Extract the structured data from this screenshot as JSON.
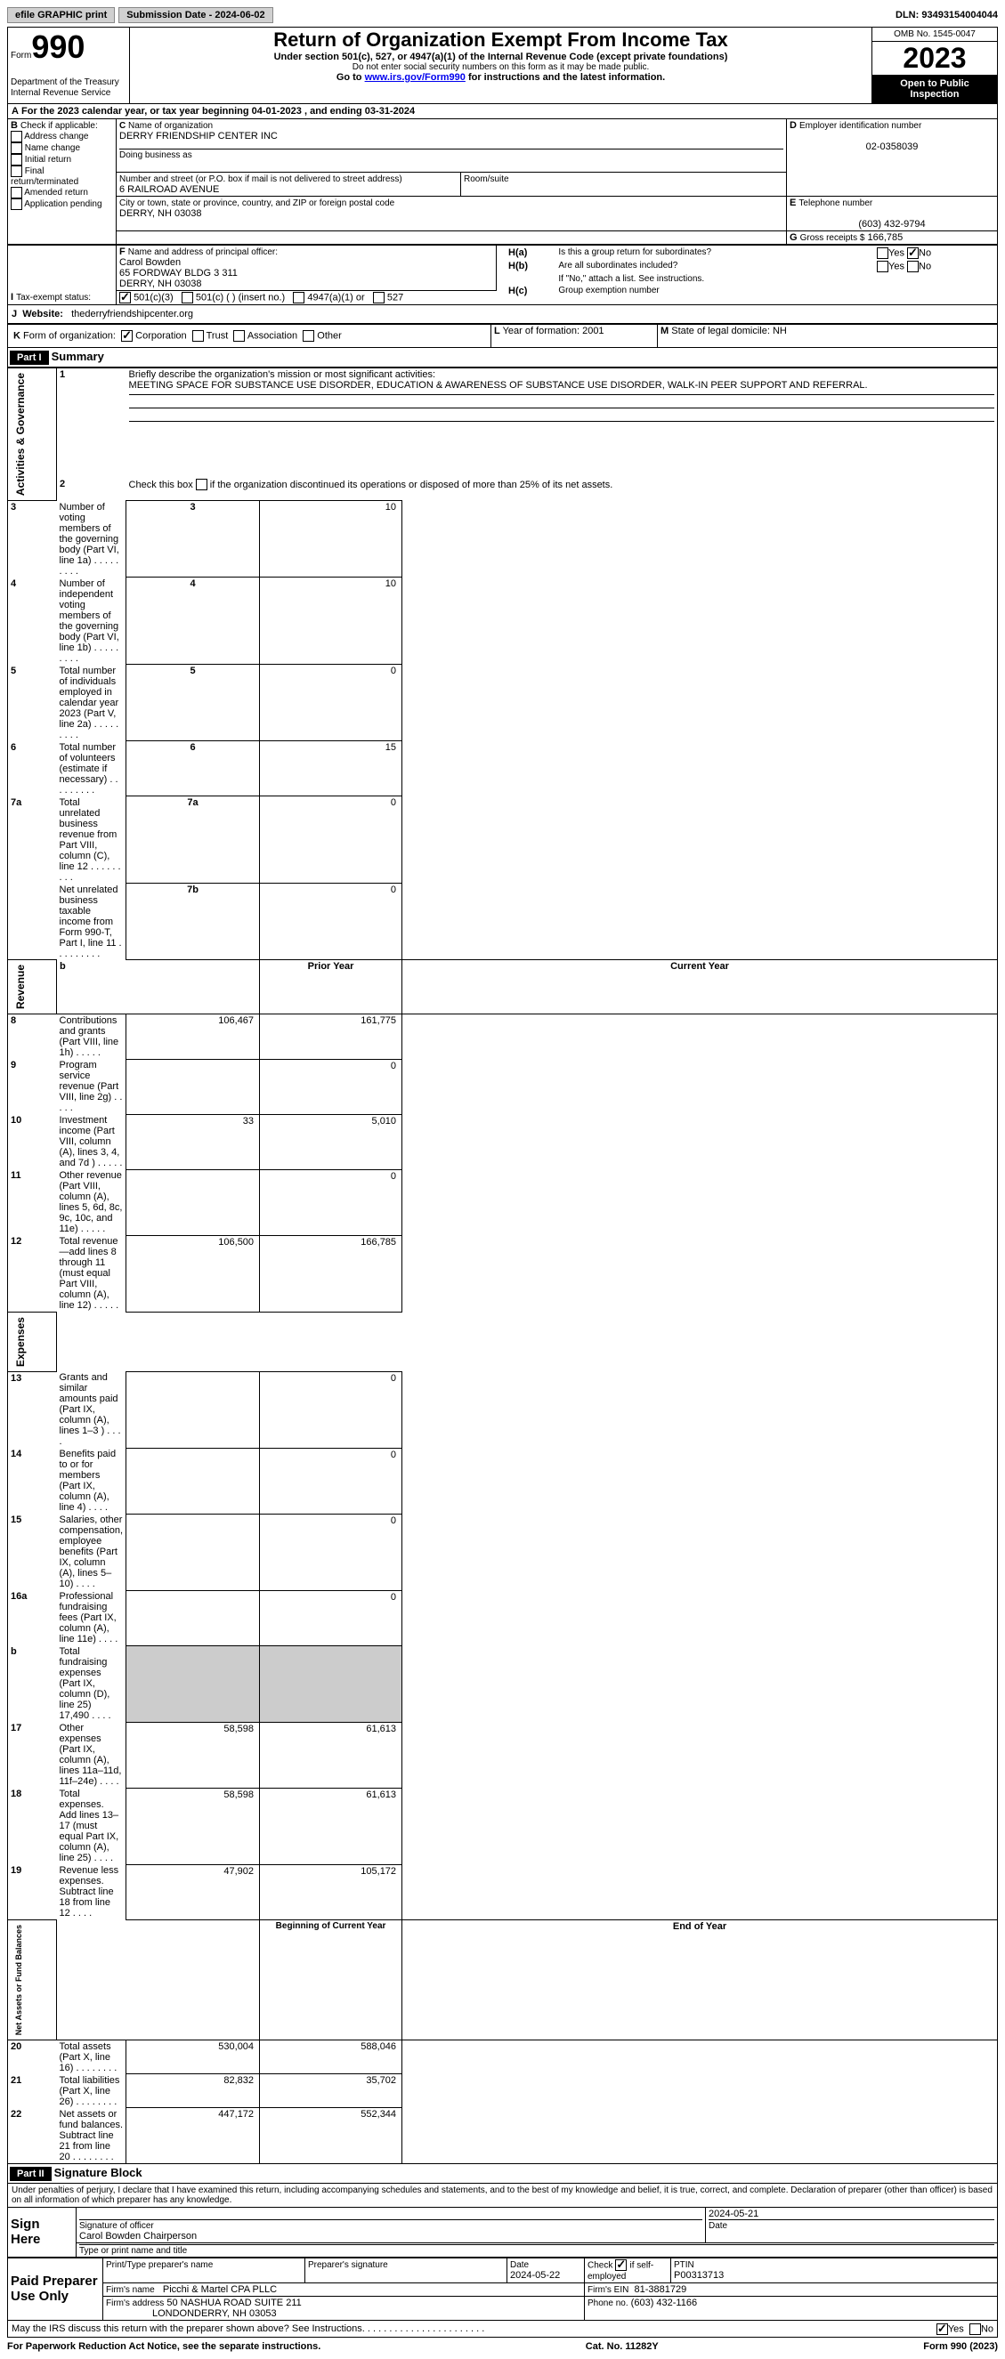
{
  "topbar": {
    "efile": "efile GRAPHIC print",
    "subdate_label": "Submission Date - ",
    "subdate": "2024-06-02",
    "dln_label": "DLN: ",
    "dln": "93493154004044"
  },
  "hdr": {
    "form_label": "Form",
    "form_no": "990",
    "dept": "Department of the Treasury",
    "irs": "Internal Revenue Service",
    "title": "Return of Organization Exempt From Income Tax",
    "subtitle": "Under section 501(c), 527, or 4947(a)(1) of the Internal Revenue Code (except private foundations)",
    "nosocial": "Do not enter social security numbers on this form as it may be made public.",
    "goto_pre": "Go to ",
    "goto_link": "www.irs.gov/Form990",
    "goto_post": " for instructions and the latest information.",
    "omb": "OMB No. 1545-0047",
    "year": "2023",
    "open": "Open to Public Inspection"
  },
  "periodA": {
    "label": "For the 2023 calendar year, or tax year beginning ",
    "begin": "04-01-2023",
    "mid": " , and ending ",
    "end": "03-31-2024"
  },
  "boxB": {
    "hdr": "Check if applicable:",
    "items": [
      "Address change",
      "Name change",
      "Initial return",
      "Final return/terminated",
      "Amended return",
      "Application pending"
    ]
  },
  "boxC": {
    "name_label": "Name of organization",
    "name": "DERRY FRIENDSHIP CENTER INC",
    "dba_label": "Doing business as",
    "addr_label": "Number and street (or P.O. box if mail is not delivered to street address)",
    "room_label": "Room/suite",
    "addr": "6 RAILROAD AVENUE",
    "city_label": "City or town, state or province, country, and ZIP or foreign postal code",
    "city": "DERRY, NH   03038"
  },
  "boxD": {
    "label": "Employer identification number",
    "val": "02-0358039"
  },
  "boxE": {
    "label": "Telephone number",
    "val": "(603) 432-9794"
  },
  "boxG": {
    "label": "Gross receipts $",
    "val": "166,785"
  },
  "boxF": {
    "label": "Name and address of principal officer:",
    "name": "Carol Bowden",
    "addr1": "65 FORDWAY BLDG 3 311",
    "addr2": "DERRY, NH   03038"
  },
  "boxH": {
    "a_label": "Is this a group return for subordinates?",
    "b_label": "Are all subordinates included?",
    "b_note": "If \"No,\" attach a list. See instructions.",
    "c_label": "Group exemption number",
    "yes": "Yes",
    "no": "No"
  },
  "boxI": {
    "label": "Tax-exempt status:",
    "opt1": "501(c)(3)",
    "opt2": "501(c) (  ) (insert no.)",
    "opt3": "4947(a)(1) or",
    "opt4": "527"
  },
  "boxJ": {
    "label": "Website:",
    "val": "thederryfriendshipcenter.org"
  },
  "boxK": {
    "label": "Form of organization:",
    "opts": [
      "Corporation",
      "Trust",
      "Association",
      "Other"
    ]
  },
  "boxL": {
    "label": "Year of formation: ",
    "val": "2001"
  },
  "boxM": {
    "label": "State of legal domicile: ",
    "val": "NH"
  },
  "part1": {
    "label": "Part I",
    "title": "Summary",
    "line1_label": "Briefly describe the organization's mission or most significant activities:",
    "line1_text": "MEETING SPACE FOR SUBSTANCE USE DISORDER, EDUCATION & AWARENESS OF SUBSTANCE USE DISORDER, WALK-IN PEER SUPPORT AND REFERRAL.",
    "line2": "Check this box  if the organization discontinued its operations or disposed of more than 25% of its net assets.",
    "gov_rows": [
      {
        "n": "3",
        "t": "Number of voting members of the governing body (Part VI, line 1a)",
        "k": "3",
        "v": "10"
      },
      {
        "n": "4",
        "t": "Number of independent voting members of the governing body (Part VI, line 1b)",
        "k": "4",
        "v": "10"
      },
      {
        "n": "5",
        "t": "Total number of individuals employed in calendar year 2023 (Part V, line 2a)",
        "k": "5",
        "v": "0"
      },
      {
        "n": "6",
        "t": "Total number of volunteers (estimate if necessary)",
        "k": "6",
        "v": "15"
      },
      {
        "n": "7a",
        "t": "Total unrelated business revenue from Part VIII, column (C), line 12",
        "k": "7a",
        "v": "0"
      },
      {
        "n": "",
        "t": "Net unrelated business taxable income from Form 990-T, Part I, line 11",
        "k": "7b",
        "v": "0"
      }
    ],
    "prior": "Prior Year",
    "current": "Current Year",
    "rev_rows": [
      {
        "n": "8",
        "t": "Contributions and grants (Part VIII, line 1h)",
        "p": "106,467",
        "c": "161,775"
      },
      {
        "n": "9",
        "t": "Program service revenue (Part VIII, line 2g)",
        "p": "",
        "c": "0"
      },
      {
        "n": "10",
        "t": "Investment income (Part VIII, column (A), lines 3, 4, and 7d )",
        "p": "33",
        "c": "5,010"
      },
      {
        "n": "11",
        "t": "Other revenue (Part VIII, column (A), lines 5, 6d, 8c, 9c, 10c, and 11e)",
        "p": "",
        "c": "0"
      },
      {
        "n": "12",
        "t": "Total revenue—add lines 8 through 11 (must equal Part VIII, column (A), line 12)",
        "p": "106,500",
        "c": "166,785"
      }
    ],
    "exp_rows": [
      {
        "n": "13",
        "t": "Grants and similar amounts paid (Part IX, column (A), lines 1–3 )",
        "p": "",
        "c": "0"
      },
      {
        "n": "14",
        "t": "Benefits paid to or for members (Part IX, column (A), line 4)",
        "p": "",
        "c": "0"
      },
      {
        "n": "15",
        "t": "Salaries, other compensation, employee benefits (Part IX, column (A), lines 5–10)",
        "p": "",
        "c": "0"
      },
      {
        "n": "16a",
        "t": "Professional fundraising fees (Part IX, column (A), line 11e)",
        "p": "",
        "c": "0"
      },
      {
        "n": "b",
        "t": "Total fundraising expenses (Part IX, column (D), line 25) 17,490",
        "p": "GREY",
        "c": "GREY"
      },
      {
        "n": "17",
        "t": "Other expenses (Part IX, column (A), lines 11a–11d, 11f–24e)",
        "p": "58,598",
        "c": "61,613"
      },
      {
        "n": "18",
        "t": "Total expenses. Add lines 13–17 (must equal Part IX, column (A), line 25)",
        "p": "58,598",
        "c": "61,613"
      },
      {
        "n": "19",
        "t": "Revenue less expenses. Subtract line 18 from line 12",
        "p": "47,902",
        "c": "105,172"
      }
    ],
    "begin": "Beginning of Current Year",
    "end": "End of Year",
    "na_rows": [
      {
        "n": "20",
        "t": "Total assets (Part X, line 16)",
        "p": "530,004",
        "c": "588,046"
      },
      {
        "n": "21",
        "t": "Total liabilities (Part X, line 26)",
        "p": "82,832",
        "c": "35,702"
      },
      {
        "n": "22",
        "t": "Net assets or fund balances. Subtract line 21 from line 20",
        "p": "447,172",
        "c": "552,344"
      }
    ],
    "sides": {
      "gov": "Activities & Governance",
      "rev": "Revenue",
      "exp": "Expenses",
      "na": "Net Assets or Fund Balances"
    }
  },
  "part2": {
    "label": "Part II",
    "title": "Signature Block",
    "decl": "Under penalties of perjury, I declare that I have examined this return, including accompanying schedules and statements, and to the best of my knowledge and belief, it is true, correct, and complete. Declaration of preparer (other than officer) is based on all information of which preparer has any knowledge.",
    "sign_here": "Sign Here",
    "sig_label": "Signature of officer",
    "date_label": "Date",
    "sig_date": "2024-05-21",
    "officer": "Carol Bowden  Chairperson",
    "type_label": "Type or print name and title",
    "paid": "Paid Preparer Use Only",
    "prep_name_label": "Print/Type preparer's name",
    "prep_sig_label": "Preparer's signature",
    "prep_date_label": "Date",
    "prep_date": "2024-05-22",
    "check_if": "Check",
    "self_emp": "if self-employed",
    "ptin_label": "PTIN",
    "ptin": "P00313713",
    "firm_name_label": "Firm's name",
    "firm_name": "Picchi & Martel CPA PLLC",
    "firm_ein_label": "Firm's EIN",
    "firm_ein": "81-3881729",
    "firm_addr_label": "Firm's address",
    "firm_addr1": "50 NASHUA ROAD SUITE 211",
    "firm_addr2": "LONDONDERRY, NH   03053",
    "phone_label": "Phone no.",
    "phone": "(603) 432-1166",
    "discuss": "May the IRS discuss this return with the preparer shown above? See Instructions.",
    "yes": "Yes",
    "no": "No"
  },
  "footer": {
    "left": "For Paperwork Reduction Act Notice, see the separate instructions.",
    "mid": "Cat. No. 11282Y",
    "right": "Form 990 (2023)"
  }
}
